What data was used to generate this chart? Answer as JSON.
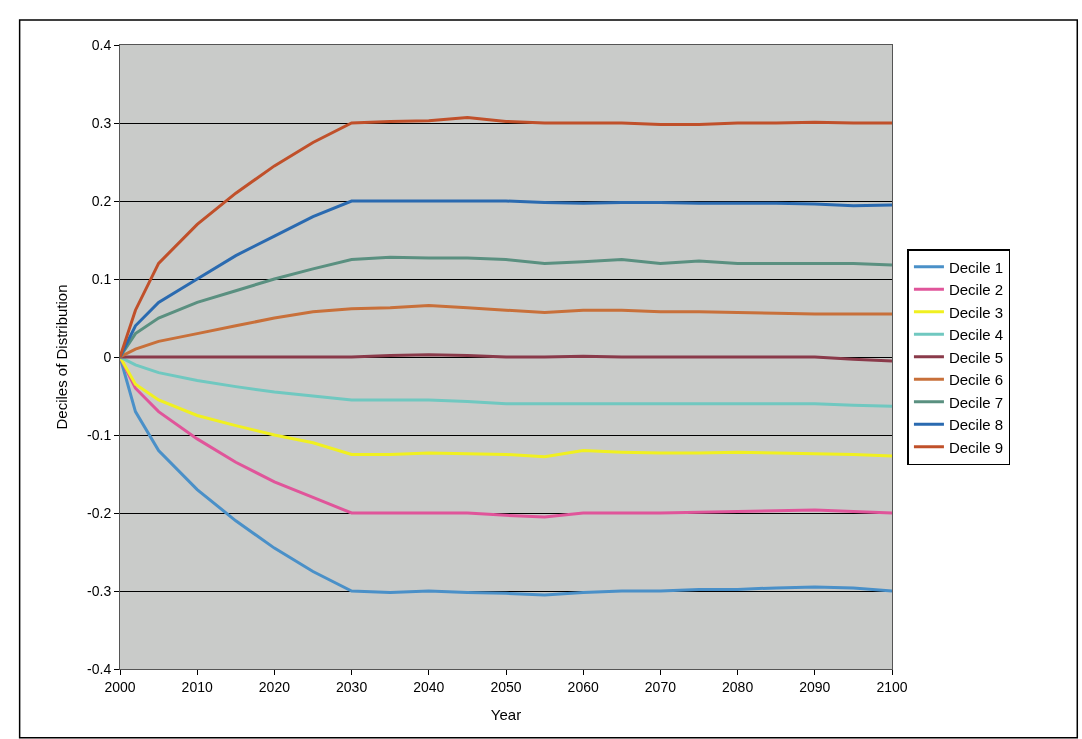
{
  "chart_data": {
    "type": "line",
    "xlabel": "Year",
    "ylabel": "Deciles of Distribution",
    "x": [
      2000,
      2002,
      2005,
      2010,
      2015,
      2020,
      2025,
      2030,
      2035,
      2040,
      2045,
      2050,
      2055,
      2060,
      2065,
      2070,
      2075,
      2080,
      2085,
      2090,
      2095,
      2100
    ],
    "xlim": [
      2000,
      2100
    ],
    "xticks": [
      2000,
      2010,
      2020,
      2030,
      2040,
      2050,
      2060,
      2070,
      2080,
      2090,
      2100
    ],
    "ylim": [
      -0.4,
      0.4
    ],
    "yticks": [
      {
        "value": -0.4,
        "label": "-0.4"
      },
      {
        "value": -0.3,
        "label": "-0.3"
      },
      {
        "value": -0.2,
        "label": "-0.2"
      },
      {
        "value": -0.1,
        "label": "-0.1"
      },
      {
        "value": 0,
        "label": "0"
      },
      {
        "value": 0.1,
        "label": "0.1"
      },
      {
        "value": 0.2,
        "label": "0.2"
      },
      {
        "value": 0.3,
        "label": "0.3"
      },
      {
        "value": 0.4,
        "label": "0.4"
      }
    ],
    "grid": "y",
    "legend": "right",
    "marker": "none",
    "line_style": "solid",
    "series": [
      {
        "name": "Decile 1",
        "color": "#4a90c8",
        "values": [
          0,
          -0.07,
          -0.12,
          -0.17,
          -0.21,
          -0.245,
          -0.275,
          -0.3,
          -0.302,
          -0.3,
          -0.302,
          -0.303,
          -0.305,
          -0.302,
          -0.3,
          -0.3,
          -0.298,
          -0.298,
          -0.296,
          -0.295,
          -0.296,
          -0.3
        ]
      },
      {
        "name": "Decile 2",
        "color": "#e0559a",
        "values": [
          0,
          -0.04,
          -0.07,
          -0.105,
          -0.135,
          -0.16,
          -0.18,
          -0.2,
          -0.2,
          -0.2,
          -0.2,
          -0.203,
          -0.205,
          -0.2,
          -0.2,
          -0.2,
          -0.199,
          -0.198,
          -0.197,
          -0.196,
          -0.198,
          -0.2
        ]
      },
      {
        "name": "Decile 3",
        "color": "#f0f020",
        "values": [
          0,
          -0.035,
          -0.055,
          -0.075,
          -0.088,
          -0.1,
          -0.11,
          -0.125,
          -0.125,
          -0.123,
          -0.124,
          -0.125,
          -0.128,
          -0.12,
          -0.122,
          -0.123,
          -0.123,
          -0.122,
          -0.123,
          -0.124,
          -0.125,
          -0.127
        ]
      },
      {
        "name": "Decile 4",
        "color": "#70c8c0",
        "values": [
          0,
          -0.01,
          -0.02,
          -0.03,
          -0.038,
          -0.045,
          -0.05,
          -0.055,
          -0.055,
          -0.055,
          -0.057,
          -0.06,
          -0.06,
          -0.06,
          -0.06,
          -0.06,
          -0.06,
          -0.06,
          -0.06,
          -0.06,
          -0.062,
          -0.063
        ]
      },
      {
        "name": "Decile 5",
        "color": "#8a3a4a",
        "values": [
          0,
          0,
          0,
          0,
          0,
          0,
          0,
          0,
          0.002,
          0.003,
          0.002,
          0,
          0,
          0.001,
          0,
          0,
          0,
          0,
          0,
          0,
          -0.003,
          -0.005
        ]
      },
      {
        "name": "Decile 6",
        "color": "#c8703a",
        "values": [
          0,
          0.01,
          0.02,
          0.03,
          0.04,
          0.05,
          0.058,
          0.062,
          0.063,
          0.066,
          0.063,
          0.06,
          0.057,
          0.06,
          0.06,
          0.058,
          0.058,
          0.057,
          0.056,
          0.055,
          0.055,
          0.055
        ]
      },
      {
        "name": "Decile 7",
        "color": "#5a9080",
        "values": [
          0,
          0.03,
          0.05,
          0.07,
          0.085,
          0.1,
          0.113,
          0.125,
          0.128,
          0.127,
          0.127,
          0.125,
          0.12,
          0.122,
          0.125,
          0.12,
          0.123,
          0.12,
          0.12,
          0.12,
          0.12,
          0.118
        ]
      },
      {
        "name": "Decile 8",
        "color": "#2a6ab0",
        "values": [
          0,
          0.04,
          0.07,
          0.1,
          0.13,
          0.155,
          0.18,
          0.2,
          0.2,
          0.2,
          0.2,
          0.2,
          0.198,
          0.197,
          0.198,
          0.198,
          0.197,
          0.197,
          0.197,
          0.196,
          0.194,
          0.195
        ]
      },
      {
        "name": "Decile 9",
        "color": "#c0502a",
        "values": [
          0,
          0.06,
          0.12,
          0.17,
          0.21,
          0.245,
          0.275,
          0.3,
          0.302,
          0.303,
          0.307,
          0.302,
          0.3,
          0.3,
          0.3,
          0.298,
          0.298,
          0.3,
          0.3,
          0.301,
          0.3,
          0.3
        ]
      }
    ]
  }
}
